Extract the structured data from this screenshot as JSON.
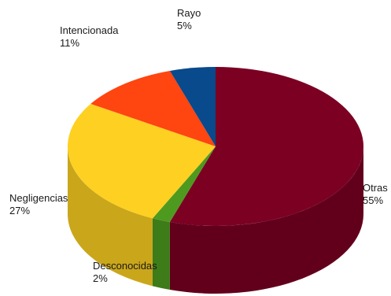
{
  "chart_data": {
    "type": "pie",
    "style": "3d",
    "title": "",
    "legend": "none",
    "slices": [
      {
        "label": "Otras",
        "value": 55,
        "pct_text": "55%",
        "color": "#7B0022"
      },
      {
        "label": "Desconocidas",
        "value": 2,
        "pct_text": "2%",
        "color": "#4E9A1F"
      },
      {
        "label": "Negligencias",
        "value": 27,
        "pct_text": "27%",
        "color": "#FDD022"
      },
      {
        "label": "Intencionada",
        "value": 11,
        "pct_text": "11%",
        "color": "#FF4510"
      },
      {
        "label": "Rayo",
        "value": 5,
        "pct_text": "5%",
        "color": "#084A8C"
      }
    ]
  }
}
